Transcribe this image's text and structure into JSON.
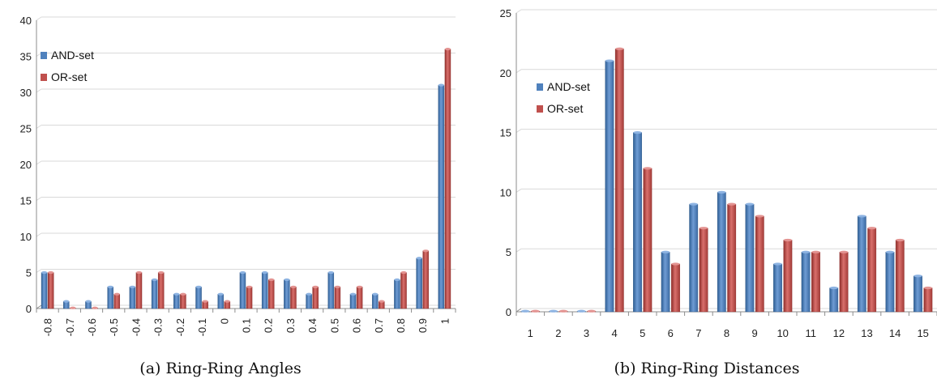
{
  "legend_colors": {
    "AND-set": "#4f81bd",
    "OR-set": "#c0504d"
  },
  "chart_data": [
    {
      "type": "bar",
      "caption": "(a) Ring-Ring Angles",
      "categories": [
        "-0.8",
        "-0.7",
        "-0.6",
        "-0.5",
        "-0.4",
        "-0.3",
        "-0.2",
        "-0.1",
        "0",
        "0.1",
        "0.2",
        "0.3",
        "0.4",
        "0.5",
        "0.6",
        "0.7",
        "0.8",
        "0.9",
        "1"
      ],
      "series": [
        {
          "name": "AND-set",
          "color": "#4f81bd",
          "values": [
            5,
            1,
            1,
            3,
            3,
            4,
            2,
            3,
            2,
            5,
            5,
            4,
            2,
            5,
            2,
            2,
            4,
            7,
            31
          ]
        },
        {
          "name": "OR-set",
          "color": "#c0504d",
          "values": [
            5,
            0,
            0,
            2,
            5,
            5,
            2,
            1,
            1,
            3,
            4,
            3,
            3,
            3,
            3,
            1,
            5,
            8,
            36
          ]
        }
      ],
      "ylim": [
        0,
        40
      ],
      "yticks": [
        "0",
        "5",
        "10",
        "15",
        "20",
        "25",
        "30",
        "35",
        "40"
      ],
      "xtick_rotation": "vertical",
      "legend_position": "upper-left",
      "grid": true
    },
    {
      "type": "bar",
      "caption": "(b) Ring-Ring Distances",
      "categories": [
        "1",
        "2",
        "3",
        "4",
        "5",
        "6",
        "7",
        "8",
        "9",
        "10",
        "11",
        "12",
        "13",
        "14",
        "15"
      ],
      "series": [
        {
          "name": "AND-set",
          "color": "#4f81bd",
          "values": [
            0,
            0,
            0,
            21,
            15,
            5,
            9,
            10,
            9,
            4,
            5,
            2,
            8,
            5,
            3
          ]
        },
        {
          "name": "OR-set",
          "color": "#c0504d",
          "values": [
            0,
            0,
            0,
            22,
            12,
            4,
            7,
            9,
            8,
            6,
            5,
            5,
            7,
            6,
            2
          ]
        }
      ],
      "ylim": [
        0,
        25
      ],
      "yticks": [
        "0",
        "5",
        "10",
        "15",
        "20",
        "25"
      ],
      "xtick_rotation": "horizontal",
      "legend_position": "upper-left",
      "grid": true
    }
  ]
}
